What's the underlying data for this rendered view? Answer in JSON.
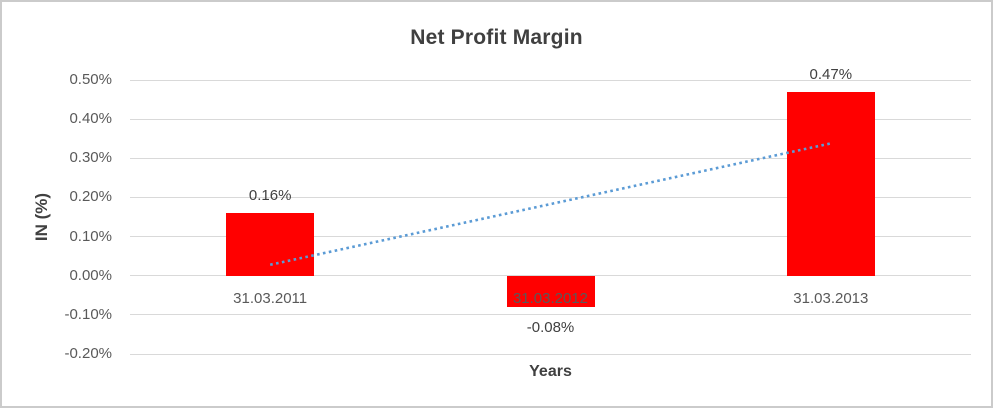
{
  "chart_data": {
    "type": "bar",
    "title": "Net Profit Margin",
    "xlabel": "Years",
    "ylabel": "IN (%)",
    "categories": [
      "31.03.2011",
      "31.03.2012",
      "31.03.2013"
    ],
    "values": [
      0.16,
      -0.08,
      0.47
    ],
    "data_labels": [
      "0.16%",
      "-0.08%",
      "0.47%"
    ],
    "yticks": [
      0.5,
      0.4,
      0.3,
      0.2,
      0.1,
      0.0,
      -0.1,
      -0.2
    ],
    "ytick_labels": [
      "0.50%",
      "0.40%",
      "0.30%",
      "0.20%",
      "0.10%",
      "0.00%",
      "-0.10%",
      "-0.20%"
    ],
    "ylim": [
      -0.2,
      0.5
    ],
    "grid": true,
    "legend": false,
    "bar_color": "#FF0000",
    "text_color": "#595959",
    "title_color": "#404040",
    "gridline_color": "#d9d9d9",
    "trendline": {
      "style": "dotted",
      "color": "#5B9BD5",
      "start_value": 0.028,
      "end_value": 0.338
    }
  }
}
